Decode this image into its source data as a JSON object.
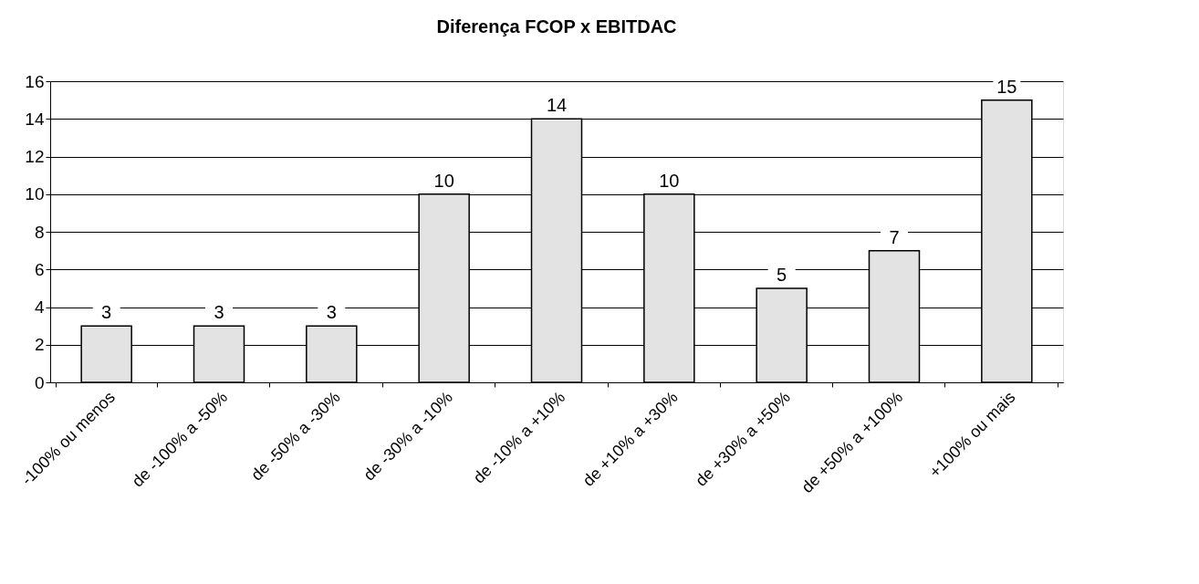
{
  "chart_data": {
    "type": "bar",
    "title": "Diferença FCOP x EBITDAC",
    "categories": [
      "-100% ou menos",
      "de -100% a -50%",
      "de -50% a -30%",
      "de -30% a -10%",
      "de -10% a +10%",
      "de +10% a +30%",
      "de +30% a +50%",
      "de +50% a +100%",
      "+100% ou mais"
    ],
    "values": [
      3,
      3,
      3,
      10,
      14,
      10,
      5,
      7,
      15
    ],
    "color": "#e3e3e3",
    "ylim": [
      0,
      16
    ],
    "yticks": [
      0,
      2,
      4,
      6,
      8,
      10,
      12,
      14,
      16
    ],
    "grid": "y",
    "data_labels": true
  }
}
